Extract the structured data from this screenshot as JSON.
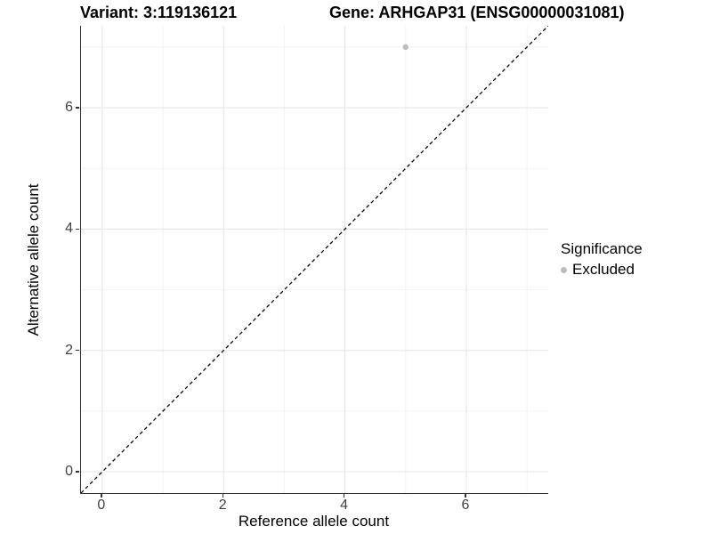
{
  "titles": {
    "variant": "Variant: 3:119136121",
    "gene": "Gene: ARHGAP31 (ENSG00000031081)"
  },
  "legend": {
    "title": "Significance",
    "items": [
      {
        "label": "Excluded",
        "color": "#bcbcbc"
      }
    ]
  },
  "chart_data": {
    "type": "scatter",
    "title": "Variant: 3:119136121 / Gene: ARHGAP31 (ENSG00000031081)",
    "xlabel": "Reference allele count",
    "ylabel": "Alternative allele count",
    "xlim": [
      -0.35,
      7.35
    ],
    "ylim": [
      -0.35,
      7.35
    ],
    "x_major_ticks": [
      0,
      2,
      4,
      6
    ],
    "y_major_ticks": [
      0,
      2,
      4,
      6
    ],
    "x_minor_ticks": [
      1,
      3,
      5,
      7
    ],
    "y_minor_ticks": [
      1,
      3,
      5,
      7
    ],
    "grid": true,
    "legend_position": "right",
    "series": [
      {
        "name": "Excluded",
        "color": "#bcbcbc",
        "points": [
          {
            "x": 5,
            "y": 7
          }
        ]
      }
    ],
    "reference_line": {
      "type": "identity y=x",
      "style": "dashed",
      "color": "#000000",
      "x1": -0.35,
      "y1": -0.35,
      "x2": 7.35,
      "y2": 7.35
    }
  },
  "colors": {
    "background": "#ffffff",
    "grid_major": "#e6e6e6",
    "grid_minor": "#f2f2f2",
    "axis_line": "#333333",
    "tick_label": "#404040",
    "point": "#bcbcbc",
    "dashed_line": "#000000"
  }
}
